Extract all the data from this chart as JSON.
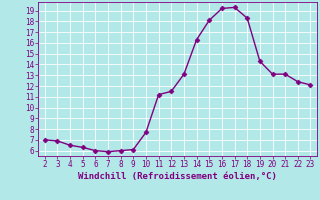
{
  "x": [
    2,
    3,
    4,
    5,
    6,
    7,
    8,
    9,
    10,
    11,
    12,
    13,
    14,
    15,
    16,
    17,
    18,
    19,
    20,
    21,
    22,
    23
  ],
  "y": [
    7.0,
    6.9,
    6.5,
    6.3,
    6.0,
    5.9,
    6.0,
    6.1,
    7.7,
    11.2,
    11.5,
    13.1,
    16.3,
    18.1,
    19.2,
    19.3,
    18.3,
    14.3,
    13.1,
    13.1,
    12.4,
    12.1
  ],
  "xlabel": "Windchill (Refroidissement éolien,°C)",
  "xlim": [
    1.5,
    23.5
  ],
  "ylim": [
    5.5,
    19.8
  ],
  "yticks": [
    6,
    7,
    8,
    9,
    10,
    11,
    12,
    13,
    14,
    15,
    16,
    17,
    18,
    19
  ],
  "xticks": [
    2,
    3,
    4,
    5,
    6,
    7,
    8,
    9,
    10,
    11,
    12,
    13,
    14,
    15,
    16,
    17,
    18,
    19,
    20,
    21,
    22,
    23
  ],
  "line_color": "#800080",
  "bg_color": "#b2e8e8",
  "grid_color": "#d0e8e8",
  "marker_size": 2.5,
  "linewidth": 1.0,
  "tick_labelsize": 5.5,
  "xlabel_fontsize": 6.5
}
